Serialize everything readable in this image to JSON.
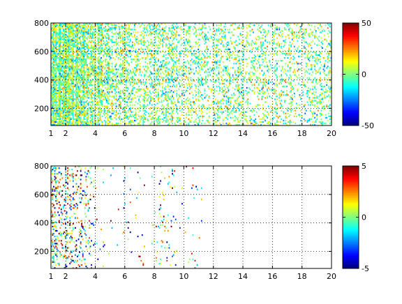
{
  "chart_data": [
    {
      "type": "heatmap",
      "title": "",
      "xlabel": "",
      "ylabel": "",
      "xlim": [
        1,
        20
      ],
      "ylim": [
        80,
        800
      ],
      "xticks": [
        1,
        2,
        4,
        6,
        8,
        10,
        12,
        14,
        16,
        18,
        20
      ],
      "yticks": [
        200,
        400,
        600,
        800
      ],
      "grid": true,
      "colormap": "jet",
      "clim": [
        -50,
        50
      ],
      "colorbar_ticks": [
        -50,
        0,
        50
      ],
      "density_profile": [
        [
          1.0,
          0.9
        ],
        [
          1.2,
          0.92
        ],
        [
          1.6,
          0.9
        ],
        [
          2.2,
          0.85
        ],
        [
          2.8,
          0.8
        ],
        [
          3.4,
          0.85
        ],
        [
          4.0,
          0.65
        ],
        [
          5.0,
          0.5
        ],
        [
          6.0,
          0.42
        ],
        [
          7.0,
          0.32
        ],
        [
          8.5,
          0.4
        ],
        [
          9.0,
          0.38
        ],
        [
          10.0,
          0.3
        ],
        [
          11.0,
          0.28
        ],
        [
          12.5,
          0.27
        ],
        [
          14.0,
          0.26
        ],
        [
          16.0,
          0.22
        ],
        [
          18.0,
          0.2
        ],
        [
          19.5,
          0.26
        ],
        [
          20.0,
          0.24
        ]
      ],
      "value_spread": 12
    },
    {
      "type": "heatmap",
      "title": "",
      "xlabel": "",
      "ylabel": "",
      "xlim": [
        1,
        20
      ],
      "ylim": [
        80,
        800
      ],
      "xticks": [
        1,
        2,
        4,
        6,
        8,
        10,
        12,
        14,
        16,
        18,
        20
      ],
      "yticks": [
        200,
        400,
        600,
        800
      ],
      "grid": true,
      "colormap": "jet",
      "clim": [
        -5,
        5
      ],
      "colorbar_ticks": [
        -5,
        0,
        5
      ],
      "density_profile": [
        [
          1.0,
          0.35
        ],
        [
          1.3,
          0.3
        ],
        [
          1.8,
          0.2
        ],
        [
          2.2,
          0.22
        ],
        [
          2.8,
          0.16
        ],
        [
          3.3,
          0.14
        ],
        [
          3.8,
          0.08
        ],
        [
          4.2,
          0.02
        ],
        [
          5.5,
          0.01
        ],
        [
          6.0,
          0.02
        ],
        [
          8.0,
          0.01
        ],
        [
          8.5,
          0.12
        ],
        [
          9.0,
          0.04
        ],
        [
          10.0,
          0.0
        ],
        [
          10.8,
          0.02
        ],
        [
          11.5,
          0.0
        ],
        [
          20.0,
          0.0
        ]
      ],
      "value_spread": 3
    }
  ]
}
